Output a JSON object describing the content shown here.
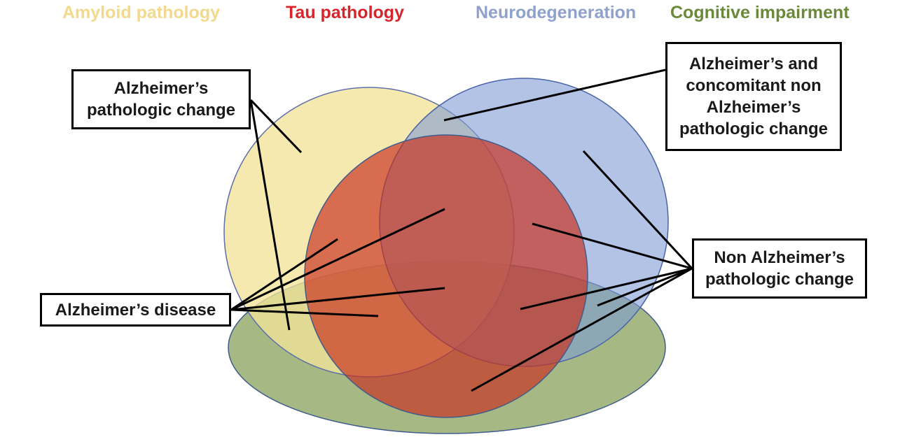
{
  "categories": {
    "amyloid": "Amyloid pathology",
    "tau": "Tau pathology",
    "neurodegeneration": "Neurodegeneration",
    "cognitive": "Cognitive impairment"
  },
  "colors": {
    "amyloid": "#f2e39a",
    "tau": "#d04a2e",
    "neurodegeneration": "#9db4de",
    "cognitive": "#93aa6a",
    "amyloid_label": "#f2d98b",
    "tau_label": "#d6262b",
    "neuro_label": "#8fa1cd",
    "cognitive_label": "#6a8a3a"
  },
  "labels": {
    "alzheimers_pathologic_change": [
      "Alzheimer’s",
      "pathologic change"
    ],
    "alzheimers_disease": [
      "Alzheimer’s disease"
    ],
    "concomitant": [
      "Alzheimer’s and",
      "concomitant non",
      "Alzheimer’s",
      "pathologic change"
    ],
    "non_alzheimers": [
      "Non Alzheimer’s",
      "pathologic change"
    ]
  }
}
